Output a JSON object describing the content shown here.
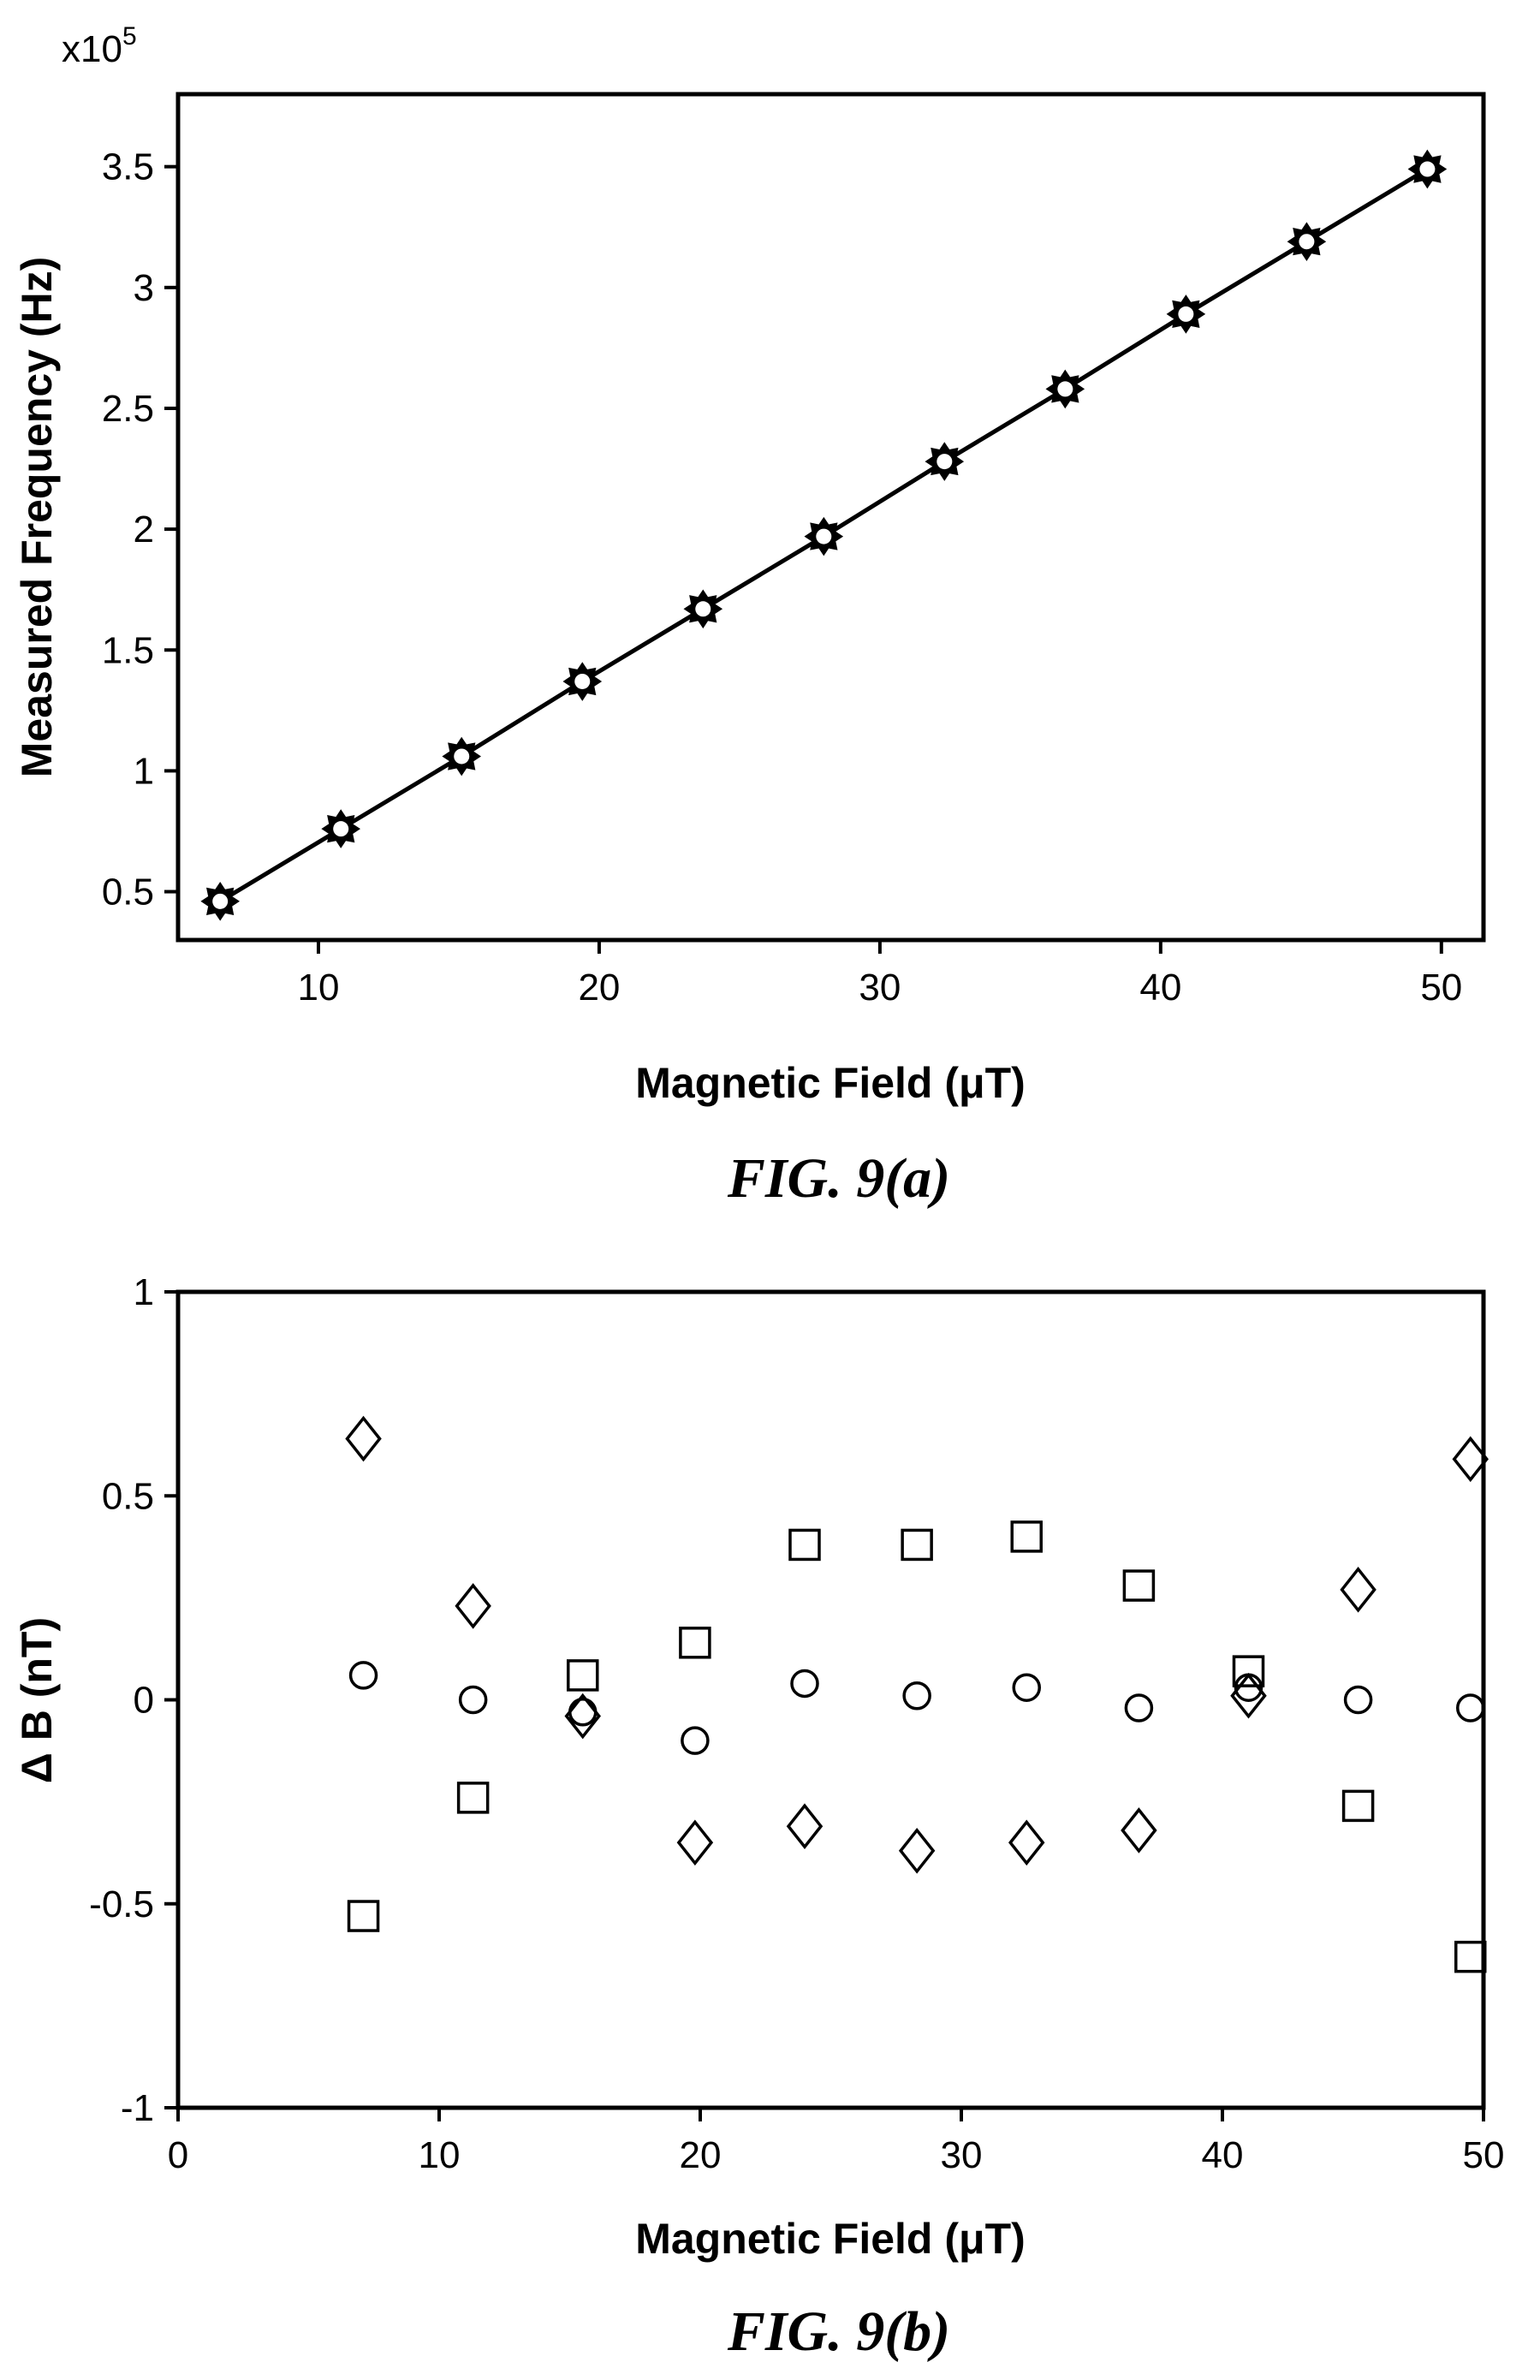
{
  "chart_data": [
    {
      "type": "line",
      "caption": "FIG. 9(a)",
      "xlabel": "Magnetic Field (μT)",
      "ylabel": "Measured Frequency (Hz)",
      "y_multiplier_label": "x10",
      "y_multiplier_exponent": "5",
      "xlim": [
        5,
        51.5
      ],
      "ylim": [
        0.3,
        3.8
      ],
      "xticks": [
        10,
        20,
        30,
        40,
        50
      ],
      "xtick_labels": [
        "10",
        "20",
        "30",
        "40",
        "50"
      ],
      "yticks": [
        0.5,
        1,
        1.5,
        2,
        2.5,
        3,
        3.5
      ],
      "ytick_labels": [
        "0.5",
        "1",
        "1.5",
        "2",
        "2.5",
        "3",
        "3.5"
      ],
      "grid": false,
      "legend": "none",
      "series": [
        {
          "marker": "star-circle",
          "line": true,
          "x": [
            6.5,
            10.8,
            15.1,
            19.4,
            23.7,
            28.0,
            32.3,
            36.6,
            40.9,
            45.2,
            49.5
          ],
          "y": [
            0.46,
            0.76,
            1.06,
            1.37,
            1.67,
            1.97,
            2.28,
            2.58,
            2.89,
            3.19,
            3.49
          ]
        }
      ]
    },
    {
      "type": "scatter",
      "caption": "FIG. 9(b)",
      "xlabel": "Magnetic Field (μT)",
      "ylabel": "Δ B (nT)",
      "xlim": [
        0,
        50
      ],
      "ylim": [
        -1,
        1
      ],
      "xticks": [
        0,
        10,
        20,
        30,
        40,
        50
      ],
      "xtick_labels": [
        "0",
        "10",
        "20",
        "30",
        "40",
        "50"
      ],
      "yticks": [
        -1,
        -0.5,
        0,
        0.5,
        1
      ],
      "ytick_labels": [
        "-1",
        "-0.5",
        "0",
        "0.5",
        "1"
      ],
      "grid": false,
      "legend": "none",
      "series": [
        {
          "marker": "diamond",
          "x": [
            7.1,
            11.3,
            15.5,
            19.8,
            24.0,
            28.3,
            32.5,
            36.8,
            41.0,
            45.2,
            49.5
          ],
          "y": [
            0.64,
            0.23,
            -0.04,
            -0.35,
            -0.31,
            -0.37,
            -0.35,
            -0.32,
            0.01,
            0.27,
            0.59
          ]
        },
        {
          "marker": "circle",
          "x": [
            7.1,
            11.3,
            15.5,
            19.8,
            24.0,
            28.3,
            32.5,
            36.8,
            41.0,
            45.2,
            49.5
          ],
          "y": [
            0.06,
            0.0,
            -0.03,
            -0.1,
            0.04,
            0.01,
            0.03,
            -0.02,
            0.03,
            0.0,
            -0.02
          ]
        },
        {
          "marker": "square",
          "x": [
            7.1,
            11.3,
            15.5,
            19.8,
            24.0,
            28.3,
            32.5,
            36.8,
            41.0,
            45.2,
            49.5
          ],
          "y": [
            -0.53,
            -0.24,
            0.06,
            0.14,
            0.38,
            0.38,
            0.4,
            0.28,
            0.07,
            -0.26,
            -0.63
          ]
        }
      ]
    }
  ]
}
